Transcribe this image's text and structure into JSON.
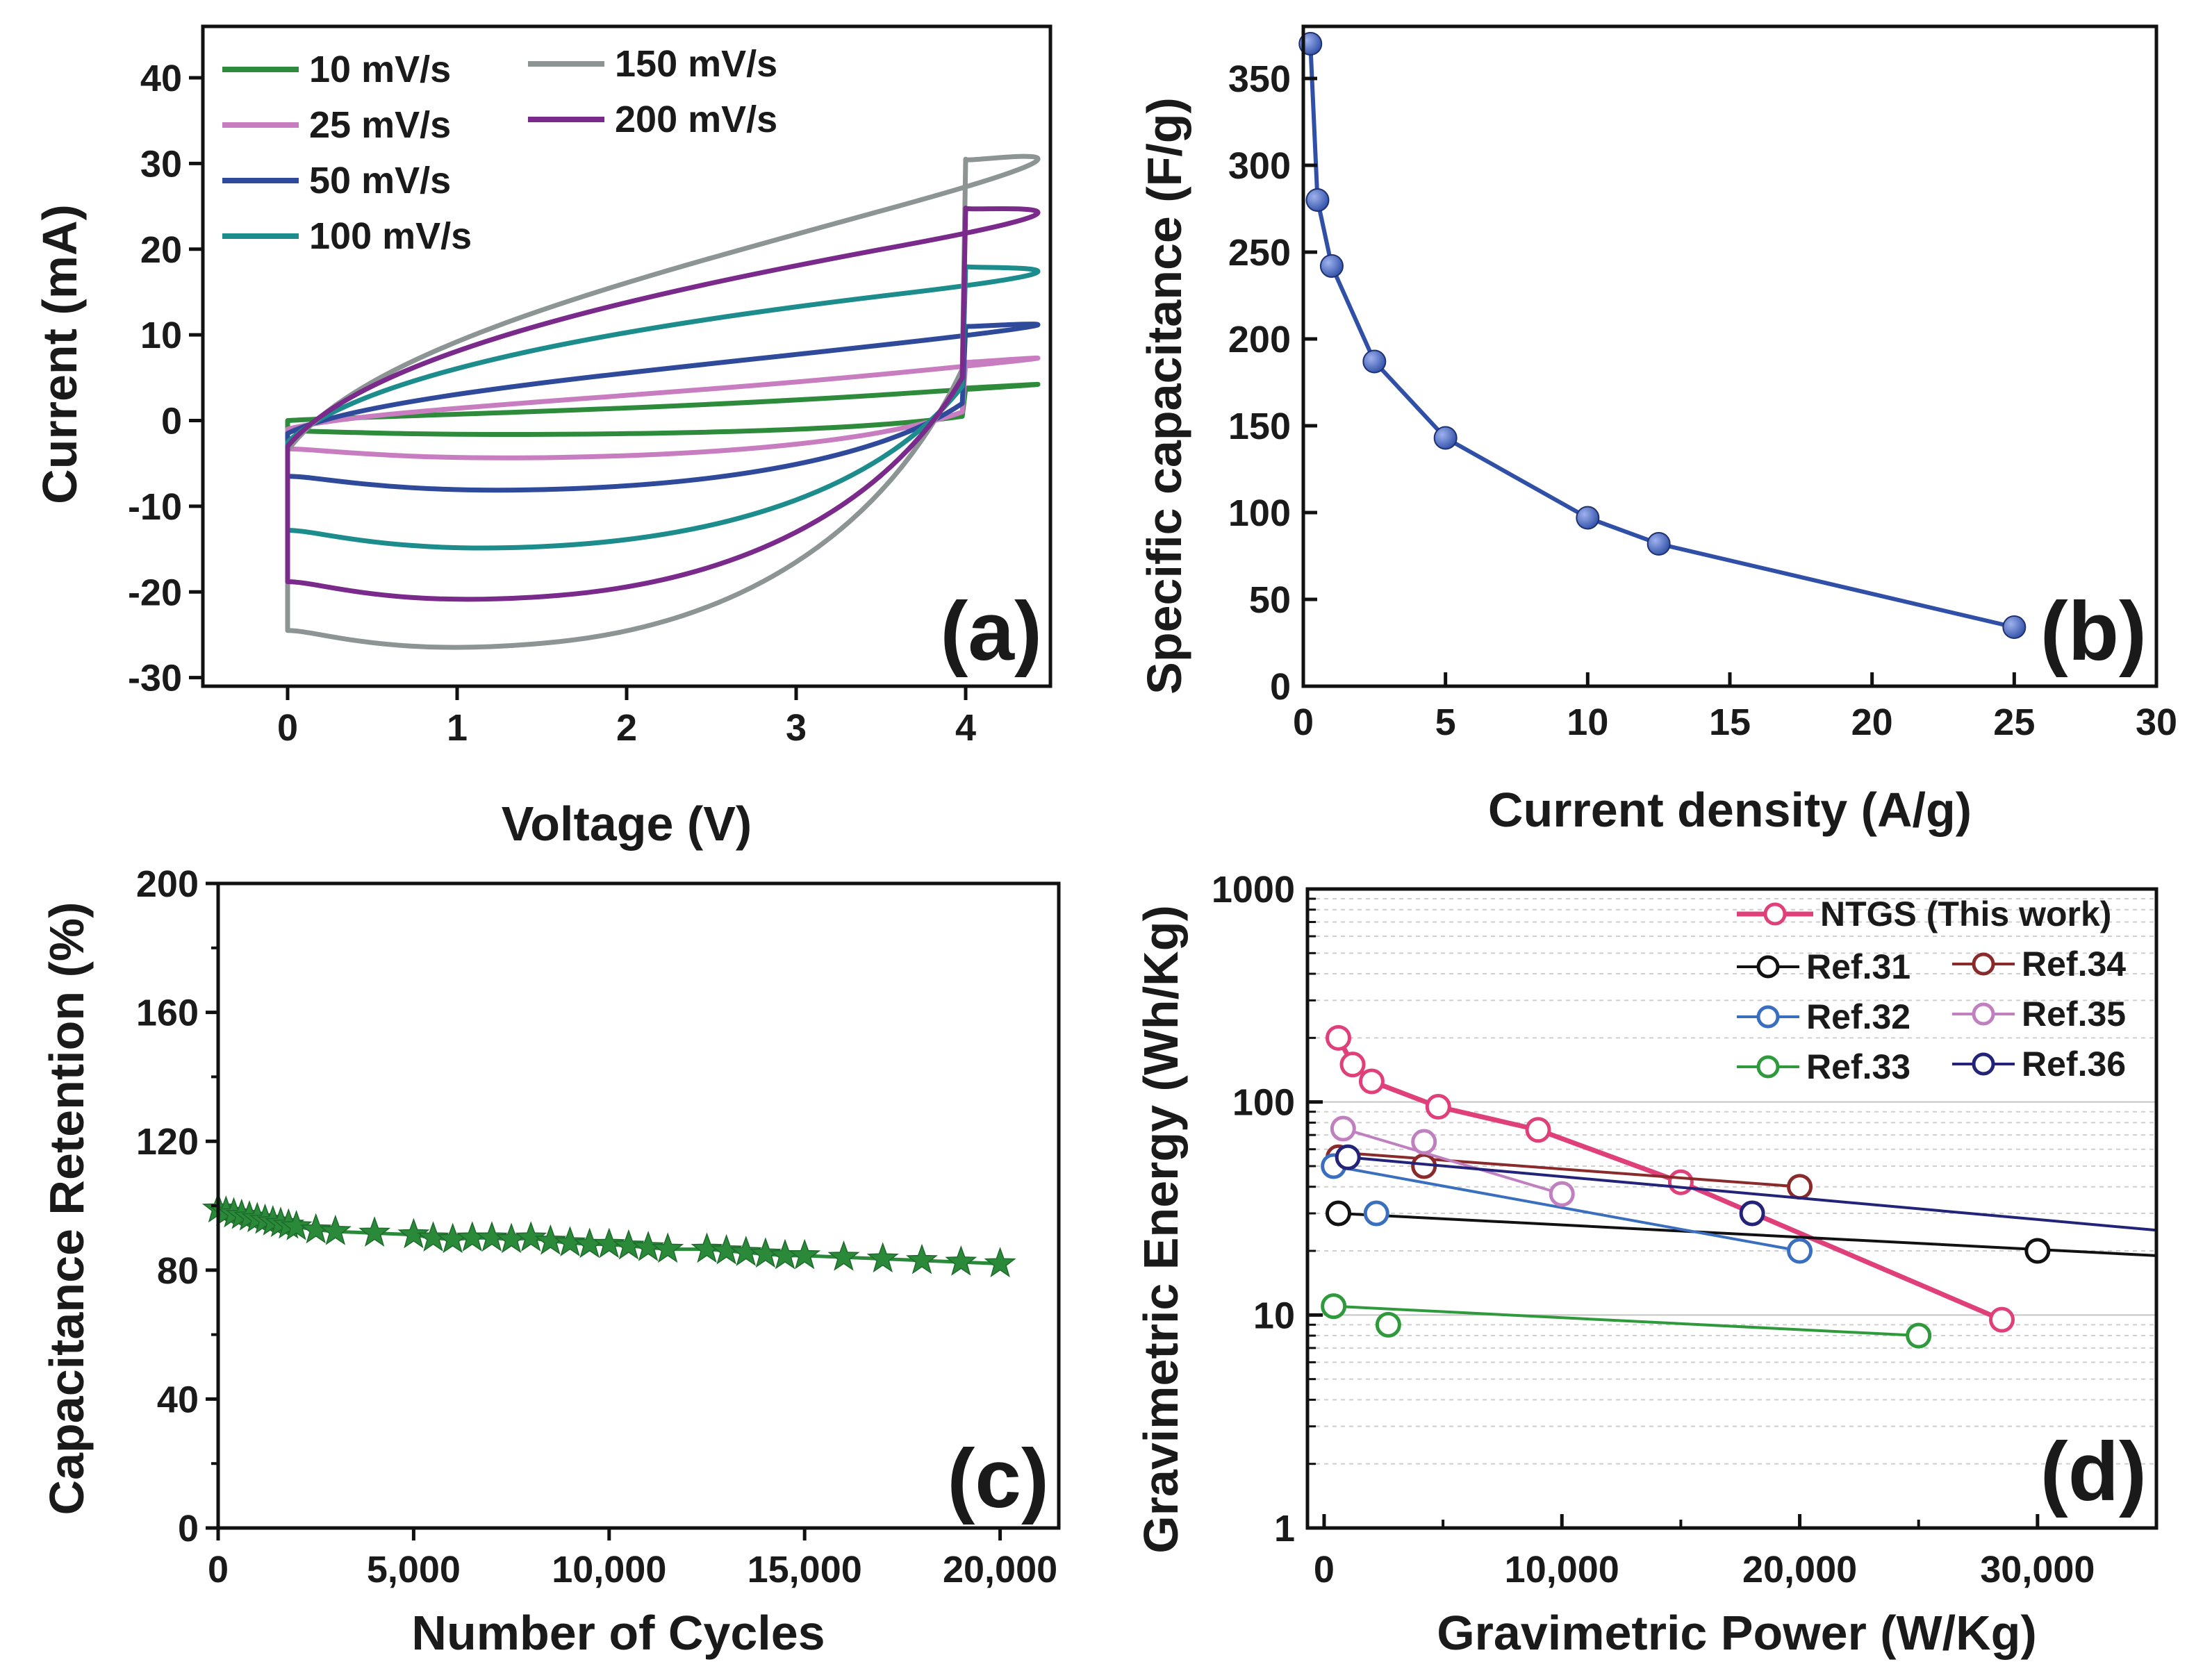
{
  "colors": {
    "s10": "#2e8b3c",
    "s25": "#c87dc0",
    "s50": "#2f4a9a",
    "s100": "#1c8c8c",
    "s150": "#8c9494",
    "s200": "#7a2a8a",
    "ntgs": "#e0407a",
    "ref31": "#111111",
    "ref32": "#3a6fc0",
    "ref33": "#2e9a3c",
    "ref34": "#8a2a2a",
    "ref35": "#c080c0",
    "ref36": "#23237a",
    "ball": "#3050a8",
    "star": "#2a8a3a"
  },
  "chart_data": [
    {
      "id": "a",
      "type": "line",
      "panel_label": "(a)",
      "xlabel": "Voltage (V)",
      "ylabel": "Current (mA)",
      "xlim": [
        -0.5,
        4.5
      ],
      "ylim": [
        -31,
        46
      ],
      "xticks": [
        0,
        1,
        2,
        3,
        4
      ],
      "yticks": [
        -30,
        -20,
        -10,
        0,
        10,
        20,
        30,
        40
      ],
      "series": [
        {
          "name": "10 mV/s",
          "color_key": "s10",
          "bottom_start": -1.2,
          "bottom_mid": -1.6,
          "end_low": 0.5,
          "top_end": 3.8,
          "top_mid": 1.0,
          "start_top": 0.0
        },
        {
          "name": "25 mV/s",
          "color_key": "s25",
          "bottom_start": -3.3,
          "bottom_mid": -4.3,
          "end_low": 1.0,
          "top_end": 6.8,
          "top_mid": 2.4,
          "start_top": -1.0
        },
        {
          "name": "50 mV/s",
          "color_key": "s50",
          "bottom_start": -6.5,
          "bottom_mid": -8.0,
          "end_low": 2.0,
          "top_end": 11.0,
          "top_mid": 5.2,
          "start_top": -1.5
        },
        {
          "name": "100 mV/s",
          "color_key": "s100",
          "bottom_start": -12.8,
          "bottom_mid": -14.6,
          "end_low": 4.0,
          "top_end": 18.0,
          "top_mid": 10.5,
          "start_top": -2.5
        },
        {
          "name": "150 mV/s",
          "color_key": "s150",
          "bottom_start": -24.5,
          "bottom_mid": -25.8,
          "end_low": 6.0,
          "top_end": 30.5,
          "top_mid": 15.5,
          "start_top": -3.5
        },
        {
          "name": "200 mV/s",
          "color_key": "s200",
          "bottom_start": -18.8,
          "bottom_mid": -20.4,
          "end_low": 5.0,
          "top_end": 24.8,
          "top_mid": 13.8,
          "start_top": -3.0
        }
      ]
    },
    {
      "id": "b",
      "type": "line",
      "panel_label": "(b)",
      "xlabel": "Current density (A/g)",
      "ylabel": "Specific  capacitance (F/g)",
      "xlim": [
        0,
        30
      ],
      "ylim": [
        0,
        380
      ],
      "xticks": [
        0,
        5,
        10,
        15,
        20,
        25,
        30
      ],
      "yticks": [
        0,
        50,
        100,
        150,
        200,
        250,
        300,
        350
      ],
      "x": [
        0.25,
        0.5,
        1,
        2.5,
        5,
        10,
        12.5,
        25
      ],
      "y": [
        370,
        280,
        242,
        187,
        143,
        97,
        82,
        34
      ]
    },
    {
      "id": "c",
      "type": "scatter",
      "panel_label": "(c)",
      "xlabel": "Number of Cycles",
      "ylabel": "Capacitance Retention (%)",
      "xlim": [
        0,
        21500
      ],
      "ylim": [
        0,
        200
      ],
      "xticks": [
        0,
        5000,
        10000,
        15000,
        20000
      ],
      "xtick_labels": [
        "0",
        "5,000",
        "10,000",
        "15,000",
        "20,000"
      ],
      "yticks": [
        0,
        40,
        80,
        120,
        160,
        200
      ],
      "x": [
        0,
        200,
        400,
        600,
        800,
        1000,
        1200,
        1400,
        1600,
        1800,
        2000,
        2500,
        3000,
        4000,
        5000,
        5500,
        6000,
        6500,
        7000,
        7500,
        8000,
        8500,
        9000,
        9500,
        10000,
        10500,
        11000,
        11500,
        12500,
        13000,
        13500,
        14000,
        14500,
        15000,
        16000,
        17000,
        18000,
        19000,
        20000
      ],
      "y": [
        99,
        98,
        97.5,
        97,
        96.5,
        96,
        95.5,
        95,
        94.5,
        94,
        93.5,
        92.5,
        92,
        91.5,
        91,
        90,
        89.5,
        90,
        90,
        89.5,
        90,
        89,
        88.5,
        88,
        88,
        87.5,
        87,
        86.5,
        86.5,
        86,
        85.5,
        85,
        84.5,
        84.5,
        84,
        83.5,
        83,
        82.5,
        82
      ]
    },
    {
      "id": "d",
      "type": "line",
      "scale_y": "log",
      "panel_label": "(d)",
      "xlabel": "Gravimetric Power (W/Kg)",
      "ylabel": "Gravimetric Energy (Wh/Kg)",
      "xlim": [
        -700,
        35000
      ],
      "ylim": [
        1,
        1000
      ],
      "xticks": [
        0,
        10000,
        20000,
        30000
      ],
      "xtick_labels": [
        "0",
        "10,000",
        "20,000",
        "30,000"
      ],
      "yticks": [
        1,
        10,
        100,
        1000
      ],
      "series": [
        {
          "name": "NTGS (This work)",
          "color_key": "ntgs",
          "x": [
            600,
            1200,
            2000,
            4800,
            9000,
            15000,
            28500
          ],
          "y": [
            200,
            150,
            125,
            95,
            74,
            42,
            9.5
          ],
          "line_x": [
            600,
            28500
          ],
          "line_y": [
            200,
            9.5
          ]
        },
        {
          "name": "Ref.31",
          "color_key": "ref31",
          "x": [
            600,
            30000
          ],
          "y": [
            30,
            20
          ],
          "line_x": [
            600,
            35000
          ],
          "line_y": [
            30,
            19
          ]
        },
        {
          "name": "Ref.34",
          "color_key": "ref34",
          "x": [
            600,
            4200,
            20000
          ],
          "y": [
            55,
            50,
            40
          ],
          "line_x": [
            600,
            20000
          ],
          "line_y": [
            58,
            40
          ]
        },
        {
          "name": "Ref.32",
          "color_key": "ref32",
          "x": [
            400,
            2200,
            20000
          ],
          "y": [
            50,
            30,
            20
          ],
          "line_x": [
            400,
            20000
          ],
          "line_y": [
            50,
            20
          ]
        },
        {
          "name": "Ref.35",
          "color_key": "ref35",
          "x": [
            800,
            4200,
            10000
          ],
          "y": [
            75,
            65,
            37
          ],
          "line_x": [
            800,
            10000
          ],
          "line_y": [
            75,
            37
          ]
        },
        {
          "name": "Ref.33",
          "color_key": "ref33",
          "x": [
            400,
            2700,
            25000
          ],
          "y": [
            11,
            9,
            8
          ],
          "line_x": [
            400,
            25000
          ],
          "line_y": [
            11,
            8
          ]
        },
        {
          "name": "Ref.36",
          "color_key": "ref36",
          "x": [
            1000,
            18000
          ],
          "y": [
            55,
            30
          ],
          "line_x": [
            1000,
            35000
          ],
          "line_y": [
            55,
            25
          ]
        }
      ]
    }
  ]
}
